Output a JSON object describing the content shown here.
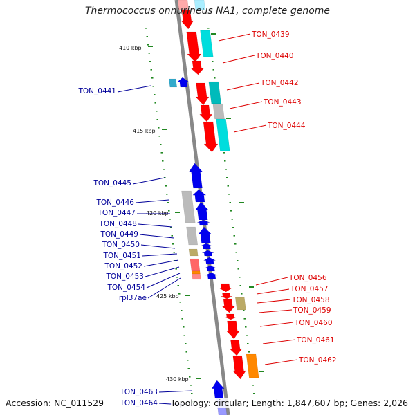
{
  "title": "Thermococcus onnurineus NA1, complete genome",
  "footer": {
    "accession": "Accession: NC_011529",
    "summary": "Topology: circular; Length: 1,847,607 bp; Genes: 2,026"
  },
  "scale_labels": [
    "410 kbp",
    "415 kbp",
    "420 kbp",
    "425 kbp",
    "430 kbp"
  ],
  "colors": {
    "forward_label": "#dd0000",
    "reverse_label": "#000099",
    "backbone": "#888888",
    "forward_cds": "#ff0000",
    "reverse_cds": "#0000ee",
    "cyan_feature": "#00dddd",
    "gray_feature": "#bbbbbb",
    "olive_feature": "#bbaa66",
    "orange_feature": "#ff8800",
    "tick_green": "#228822"
  },
  "right_labels": [
    "TON_0439",
    "TON_0440",
    "TON_0442",
    "TON_0443",
    "TON_0444",
    "TON_0456",
    "TON_0457",
    "TON_0458",
    "TON_0459",
    "TON_0460",
    "TON_0461",
    "TON_0462"
  ],
  "left_labels": [
    "TON_0441",
    "TON_0445",
    "TON_0446",
    "TON_0447",
    "TON_0448",
    "TON_0449",
    "TON_0450",
    "TON_0451",
    "TON_0452",
    "TON_0453",
    "TON_0454",
    "rpl37ae",
    "TON_0463",
    "TON_0464"
  ]
}
